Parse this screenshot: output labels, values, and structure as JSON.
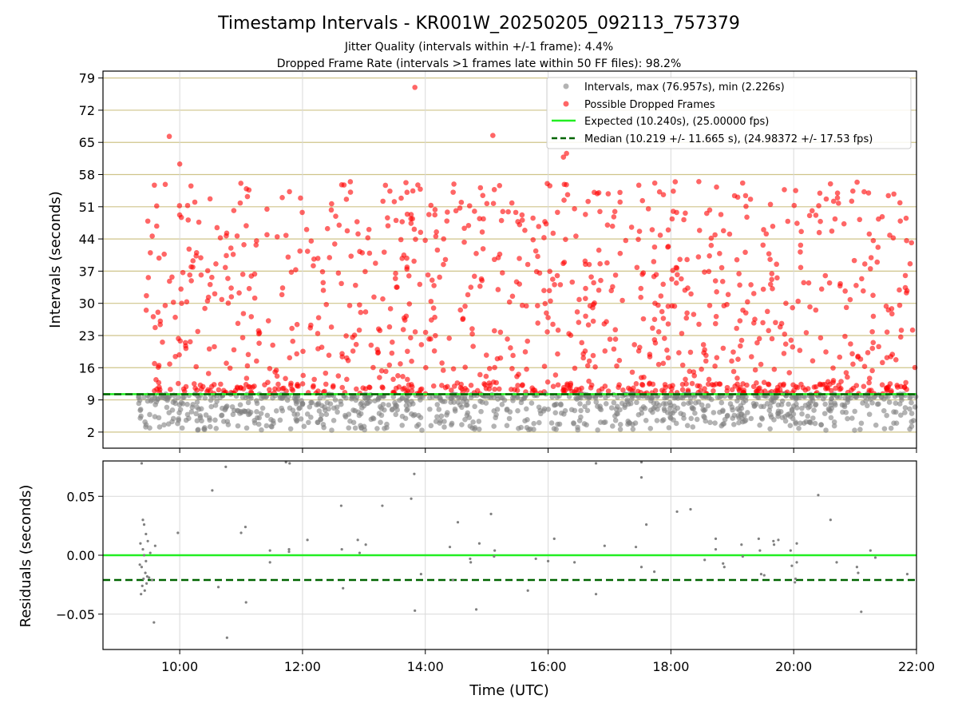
{
  "chart_data": [
    {
      "type": "scatter",
      "title": "Timestamp Intervals - KR001W_20250205_092113_757379",
      "subtitle_lines": [
        "Jitter Quality (intervals within +/-1 frame): 4.4%",
        "Dropped Frame Rate (intervals >1 frames late within 50 FF files): 98.2%"
      ],
      "ylabel": "Intervals (seconds)",
      "xlim_hours": [
        8.75,
        22.0
      ],
      "ylim": [
        -1.5,
        80.5
      ],
      "yticks": [
        2,
        9,
        16,
        23,
        30,
        37,
        44,
        51,
        58,
        65,
        72,
        79
      ],
      "grid": true,
      "legend_position": "top-right",
      "legend": [
        "Intervals, max (76.957s), min (2.226s)",
        "Possible Dropped Frames",
        "Expected (10.240s), (25.00000 fps)",
        "Median (10.219 +/- 11.665 s), (24.98372 +/- 17.53 fps)"
      ],
      "expected_line": 10.24,
      "median_line": 10.219,
      "series": [
        {
          "name": "Intervals, max (76.957s), min (2.226s)",
          "color": "#808080",
          "generated_points": 950,
          "x_range_hours": [
            9.33,
            22.0
          ],
          "y_range": [
            2.226,
            10.3
          ],
          "values_note": "dense grey band of points between ~2 and ~10 s"
        },
        {
          "name": "Possible Dropped Frames",
          "color": "#ff0000",
          "generated_points": 1100,
          "x_range_hours": [
            9.45,
            22.0
          ],
          "y_range": [
            10.3,
            76.957
          ],
          "highlight_points": [
            {
              "x": 9.83,
              "y": 66.3
            },
            {
              "x": 10.0,
              "y": 60.3
            },
            {
              "x": 13.83,
              "y": 76.96
            },
            {
              "x": 15.1,
              "y": 66.5
            },
            {
              "x": 16.25,
              "y": 61.8
            },
            {
              "x": 16.3,
              "y": 62.6
            }
          ]
        }
      ]
    },
    {
      "type": "scatter",
      "ylabel": "Residuals (seconds)",
      "xlabel": "Time (UTC)",
      "xlim_hours": [
        8.75,
        22.0
      ],
      "xticks_hours": [
        10,
        12,
        14,
        16,
        18,
        20,
        22
      ],
      "xtick_labels": [
        "10:00",
        "12:00",
        "14:00",
        "16:00",
        "18:00",
        "20:00",
        "22:00"
      ],
      "ylim": [
        -0.08,
        0.08
      ],
      "yticks": [
        0.05,
        0.0,
        -0.05
      ],
      "ytick_labels": [
        "0.05",
        "0.00",
        "−0.05"
      ],
      "grid": true,
      "expected_line": 0.0,
      "median_line": -0.021,
      "series": [
        {
          "name": "Residuals",
          "color": "#808080",
          "points": [
            [
              9.38,
              0.078
            ],
            [
              9.4,
              0.03
            ],
            [
              9.42,
              0.026
            ],
            [
              9.36,
              0.01
            ],
            [
              9.4,
              0.005
            ],
            [
              9.45,
              -0.005
            ],
            [
              9.38,
              -0.01
            ],
            [
              9.44,
              -0.015
            ],
            [
              9.41,
              -0.02
            ],
            [
              9.47,
              -0.018
            ],
            [
              9.39,
              -0.026
            ],
            [
              9.43,
              -0.03
            ],
            [
              9.37,
              -0.033
            ],
            [
              9.46,
              -0.024
            ],
            [
              9.5,
              -0.019
            ],
            [
              9.42,
              0.0
            ],
            [
              9.48,
              0.012
            ],
            [
              9.35,
              -0.008
            ],
            [
              9.52,
              0.002
            ],
            [
              9.55,
              -0.021
            ],
            [
              9.58,
              -0.057
            ],
            [
              9.6,
              0.008
            ],
            [
              9.45,
              0.018
            ],
            [
              9.97,
              0.019
            ],
            [
              10.53,
              0.055
            ],
            [
              10.63,
              -0.027
            ],
            [
              10.75,
              0.075
            ],
            [
              10.77,
              -0.07
            ],
            [
              11.0,
              0.019
            ],
            [
              11.07,
              0.024
            ],
            [
              11.08,
              -0.04
            ],
            [
              11.47,
              0.004
            ],
            [
              11.47,
              -0.006
            ],
            [
              11.73,
              0.079
            ],
            [
              11.79,
              0.078
            ],
            [
              11.78,
              0.005
            ],
            [
              11.78,
              0.003
            ],
            [
              12.08,
              0.013
            ],
            [
              12.63,
              0.042
            ],
            [
              12.64,
              0.005
            ],
            [
              12.66,
              -0.028
            ],
            [
              12.9,
              0.013
            ],
            [
              12.93,
              0.002
            ],
            [
              13.03,
              0.009
            ],
            [
              13.3,
              0.042
            ],
            [
              13.77,
              0.048
            ],
            [
              13.82,
              0.069
            ],
            [
              13.83,
              -0.047
            ],
            [
              13.93,
              -0.016
            ],
            [
              14.4,
              0.007
            ],
            [
              14.45,
              -0.021
            ],
            [
              14.53,
              0.028
            ],
            [
              14.73,
              -0.003
            ],
            [
              14.74,
              -0.006
            ],
            [
              14.83,
              -0.046
            ],
            [
              14.88,
              0.01
            ],
            [
              15.07,
              0.035
            ],
            [
              15.13,
              0.004
            ],
            [
              15.12,
              -0.001
            ],
            [
              15.67,
              -0.03
            ],
            [
              15.8,
              -0.003
            ],
            [
              16.0,
              -0.005
            ],
            [
              16.1,
              0.014
            ],
            [
              16.43,
              -0.006
            ],
            [
              16.78,
              0.078
            ],
            [
              16.78,
              -0.033
            ],
            [
              16.92,
              0.008
            ],
            [
              17.43,
              0.007
            ],
            [
              17.52,
              0.066
            ],
            [
              17.52,
              -0.01
            ],
            [
              17.52,
              0.079
            ],
            [
              17.6,
              0.026
            ],
            [
              17.73,
              -0.014
            ],
            [
              18.1,
              0.037
            ],
            [
              18.32,
              0.039
            ],
            [
              18.55,
              -0.004
            ],
            [
              18.73,
              0.014
            ],
            [
              18.73,
              0.005
            ],
            [
              18.85,
              -0.007
            ],
            [
              18.87,
              -0.01
            ],
            [
              19.15,
              0.009
            ],
            [
              19.17,
              -0.001
            ],
            [
              19.43,
              0.014
            ],
            [
              19.45,
              0.004
            ],
            [
              19.47,
              -0.016
            ],
            [
              19.52,
              -0.017
            ],
            [
              19.68,
              0.009
            ],
            [
              19.67,
              0.012
            ],
            [
              19.75,
              0.013
            ],
            [
              19.95,
              0.004
            ],
            [
              19.97,
              -0.009
            ],
            [
              20.05,
              0.01
            ],
            [
              20.03,
              -0.02
            ],
            [
              20.02,
              -0.023
            ],
            [
              20.05,
              -0.006
            ],
            [
              20.4,
              0.051
            ],
            [
              20.6,
              0.03
            ],
            [
              20.7,
              -0.006
            ],
            [
              21.03,
              -0.01
            ],
            [
              21.05,
              -0.015
            ],
            [
              21.1,
              -0.048
            ],
            [
              21.25,
              0.004
            ],
            [
              21.33,
              -0.002
            ],
            [
              21.85,
              -0.016
            ]
          ]
        }
      ]
    }
  ]
}
